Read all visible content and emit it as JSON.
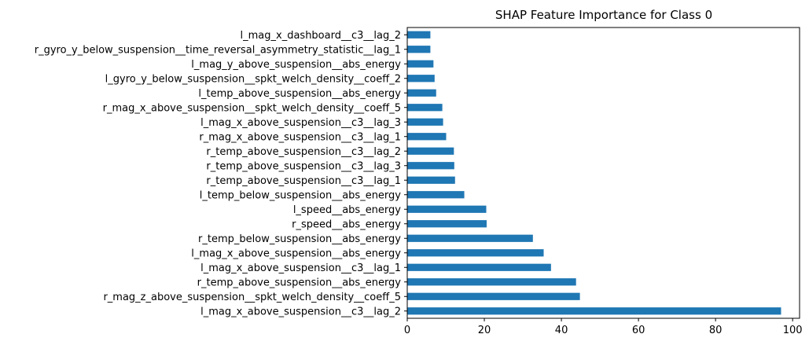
{
  "chart_data": {
    "type": "bar",
    "orientation": "horizontal",
    "title": "SHAP Feature Importance for Class 0",
    "xlabel": "",
    "ylabel": "",
    "xlim": [
      0,
      101.8
    ],
    "xticks": [
      0,
      20,
      40,
      60,
      80,
      100
    ],
    "grid": false,
    "bar_color": "#1f77b4",
    "categories": [
      "l_mag_x_above_suspension__c3__lag_2",
      "r_mag_z_above_suspension__spkt_welch_density__coeff_5",
      "r_temp_above_suspension__abs_energy",
      "l_mag_x_above_suspension__c3__lag_1",
      "l_mag_x_above_suspension__abs_energy",
      "r_temp_below_suspension__abs_energy",
      "r_speed__abs_energy",
      "l_speed__abs_energy",
      "l_temp_below_suspension__abs_energy",
      "r_temp_above_suspension__c3__lag_1",
      "r_temp_above_suspension__c3__lag_3",
      "r_temp_above_suspension__c3__lag_2",
      "r_mag_x_above_suspension__c3__lag_1",
      "l_mag_x_above_suspension__c3__lag_3",
      "r_mag_x_above_suspension__spkt_welch_density__coeff_5",
      "l_temp_above_suspension__abs_energy",
      "l_gyro_y_below_suspension__spkt_welch_density__coeff_2",
      "l_mag_y_above_suspension__abs_energy",
      "r_gyro_y_below_suspension__time_reversal_asymmetry_statistic__lag_1",
      "l_mag_x_dashboard__c3__lag_2"
    ],
    "values": [
      97.0,
      44.8,
      43.8,
      37.3,
      35.4,
      32.6,
      20.6,
      20.5,
      14.8,
      12.4,
      12.2,
      12.1,
      10.1,
      9.3,
      9.1,
      7.5,
      7.1,
      6.8,
      6.0,
      6.0
    ]
  }
}
